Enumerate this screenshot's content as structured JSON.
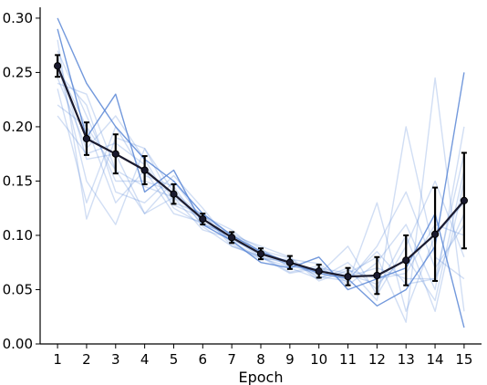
{
  "chart_data": {
    "type": "line",
    "title": "",
    "xlabel": "Epoch",
    "ylabel": "",
    "x": [
      1,
      2,
      3,
      4,
      5,
      6,
      7,
      8,
      9,
      10,
      11,
      12,
      13,
      14,
      15
    ],
    "xlim": [
      0.4,
      15.6
    ],
    "ylim": [
      0.0,
      0.31
    ],
    "y_ticks": [
      0.0,
      0.05,
      0.1,
      0.15,
      0.2,
      0.25,
      0.3
    ],
    "y_tick_labels": [
      "0.00",
      "0.05",
      "0.10",
      "0.15",
      "0.20",
      "0.25",
      "0.30"
    ],
    "grid": false,
    "legend": "none",
    "colors": {
      "mean": "#1a1a2e",
      "runs": "#5b87d6"
    },
    "mean": {
      "values": [
        0.256,
        0.189,
        0.175,
        0.16,
        0.138,
        0.115,
        0.098,
        0.083,
        0.075,
        0.067,
        0.062,
        0.063,
        0.077,
        0.101,
        0.132
      ],
      "err": [
        0.01,
        0.015,
        0.018,
        0.013,
        0.009,
        0.005,
        0.005,
        0.005,
        0.006,
        0.006,
        0.008,
        0.017,
        0.023,
        0.043,
        0.044
      ]
    },
    "runs": [
      {
        "values": [
          0.3,
          0.24,
          0.2,
          0.17,
          0.15,
          0.12,
          0.1,
          0.085,
          0.075,
          0.065,
          0.06,
          0.035,
          0.05,
          0.09,
          0.25
        ]
      },
      {
        "values": [
          0.29,
          0.19,
          0.23,
          0.14,
          0.16,
          0.11,
          0.095,
          0.075,
          0.07,
          0.08,
          0.05,
          0.06,
          0.07,
          0.12,
          0.015
        ]
      },
      {
        "values": [
          0.28,
          0.115,
          0.19,
          0.18,
          0.13,
          0.12,
          0.09,
          0.08,
          0.065,
          0.07,
          0.065,
          0.08,
          0.02,
          0.245,
          0.03
        ]
      },
      {
        "values": [
          0.27,
          0.21,
          0.15,
          0.15,
          0.14,
          0.11,
          0.1,
          0.09,
          0.08,
          0.06,
          0.075,
          0.05,
          0.1,
          0.03,
          0.15
        ]
      },
      {
        "values": [
          0.265,
          0.17,
          0.175,
          0.12,
          0.15,
          0.115,
          0.095,
          0.085,
          0.072,
          0.068,
          0.062,
          0.07,
          0.06,
          0.06,
          0.12
        ]
      },
      {
        "values": [
          0.26,
          0.15,
          0.11,
          0.18,
          0.14,
          0.118,
          0.105,
          0.083,
          0.076,
          0.062,
          0.058,
          0.09,
          0.14,
          0.07,
          0.11
        ]
      },
      {
        "values": [
          0.255,
          0.2,
          0.13,
          0.16,
          0.12,
          0.112,
          0.098,
          0.08,
          0.074,
          0.066,
          0.064,
          0.055,
          0.08,
          0.04,
          0.16
        ]
      },
      {
        "values": [
          0.25,
          0.22,
          0.14,
          0.13,
          0.155,
          0.125,
          0.092,
          0.078,
          0.078,
          0.074,
          0.056,
          0.13,
          0.03,
          0.1,
          0.13
        ]
      },
      {
        "values": [
          0.245,
          0.18,
          0.21,
          0.17,
          0.125,
          0.11,
          0.102,
          0.088,
          0.07,
          0.06,
          0.07,
          0.04,
          0.2,
          0.08,
          0.06
        ]
      },
      {
        "values": [
          0.24,
          0.23,
          0.16,
          0.145,
          0.135,
          0.105,
          0.097,
          0.082,
          0.073,
          0.064,
          0.09,
          0.045,
          0.09,
          0.15,
          0.08
        ]
      },
      {
        "values": [
          0.235,
          0.13,
          0.2,
          0.155,
          0.145,
          0.108,
          0.09,
          0.081,
          0.066,
          0.072,
          0.054,
          0.075,
          0.11,
          0.05,
          0.2
        ]
      },
      {
        "values": [
          0.22,
          0.2,
          0.16,
          0.12,
          0.135,
          0.118,
          0.1,
          0.086,
          0.079,
          0.058,
          0.068,
          0.06,
          0.065,
          0.11,
          0.1
        ]
      },
      {
        "values": [
          0.21,
          0.175,
          0.185,
          0.165,
          0.128,
          0.116,
          0.094,
          0.079,
          0.071,
          0.069,
          0.06,
          0.085,
          0.055,
          0.06,
          0.175
        ]
      }
    ]
  }
}
